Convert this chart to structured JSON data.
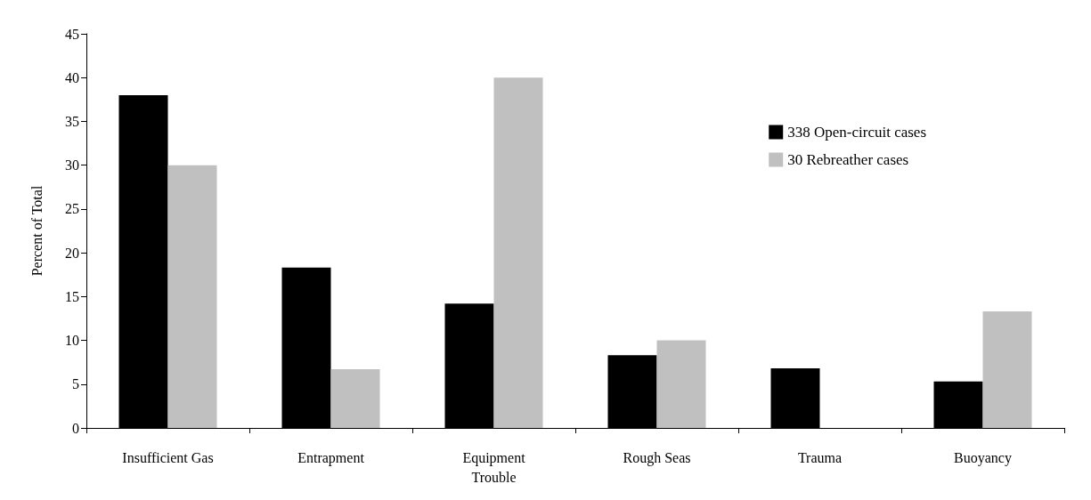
{
  "chart_data": {
    "type": "bar",
    "ylabel": "Percent of Total",
    "categories": [
      "Insufficient Gas",
      "Entrapment",
      "Equipment\nTrouble",
      "Rough Seas",
      "Trauma",
      "Buoyancy"
    ],
    "series": [
      {
        "name": "338 Open-circuit cases",
        "color": "#000000",
        "values": [
          38,
          18.3,
          14.2,
          8.3,
          6.8,
          5.3
        ]
      },
      {
        "name": "30 Rebreather cases",
        "color": "#c0c0c0",
        "values": [
          30,
          6.7,
          40,
          10,
          0,
          13.3
        ]
      }
    ],
    "ylim": [
      0,
      45
    ],
    "yticks": [
      0,
      5,
      10,
      15,
      20,
      25,
      30,
      35,
      40,
      45
    ],
    "grid": false,
    "legend": "top right"
  }
}
